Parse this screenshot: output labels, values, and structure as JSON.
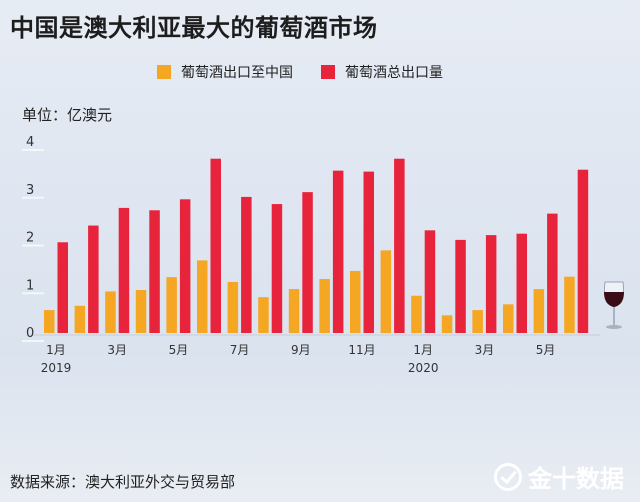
{
  "title": "中国是澳大利亚最大的葡萄酒市场",
  "unit_label": "单位：亿澳元",
  "source": "数据来源：澳大利亚外交与贸易部",
  "brand": "金十数据",
  "colors": {
    "china": "#f5a623",
    "total": "#e8243c"
  },
  "chart_data": {
    "type": "bar",
    "title": "中国是澳大利亚最大的葡萄酒市场",
    "ylabel": "单位：亿澳元",
    "ylim": [
      0,
      4
    ],
    "yticks": [
      "0",
      "1",
      "2",
      "3",
      "4"
    ],
    "x_tick_labels": [
      "1月",
      "3月",
      "5月",
      "7月",
      "9月",
      "11月",
      "1月",
      "3月",
      "5月"
    ],
    "year_labels": [
      "2019",
      "2020"
    ],
    "legend": "top",
    "series": [
      {
        "name": "葡萄酒出口至中国",
        "color": "#f5a623",
        "values": [
          0.48,
          0.57,
          0.87,
          0.9,
          1.17,
          1.52,
          1.07,
          0.75,
          0.92,
          1.13,
          1.3,
          1.73,
          0.78,
          0.37,
          0.48,
          0.6,
          0.92,
          1.18
        ]
      },
      {
        "name": "葡萄酒总出口量",
        "color": "#e8243c",
        "values": [
          1.9,
          2.25,
          2.62,
          2.57,
          2.8,
          3.65,
          2.85,
          2.7,
          2.95,
          3.4,
          3.38,
          3.65,
          2.15,
          1.95,
          2.05,
          2.08,
          2.5,
          3.42
        ]
      }
    ]
  }
}
